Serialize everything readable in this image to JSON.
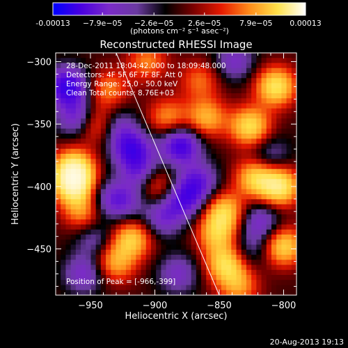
{
  "chart_data": {
    "type": "heatmap",
    "title": "Reconstructed RHESSI Image",
    "xlabel": "Heliocentric X (arcsec)",
    "ylabel": "Heliocentric Y (arcsec)",
    "xlim": [
      -977,
      -790
    ],
    "ylim": [
      -487,
      -293
    ],
    "x_ticks": [
      -950,
      -900,
      -850,
      -800
    ],
    "x_tick_labels": [
      "−950",
      "−900",
      "−850",
      "−800"
    ],
    "y_ticks": [
      -300,
      -350,
      -400,
      -450
    ],
    "y_tick_labels": [
      "−300",
      "−350",
      "−400",
      "−450"
    ],
    "colorbar": {
      "min": -0.00013,
      "max": 0.00013,
      "ticks": [
        -0.00013,
        -7.9e-05,
        -2.6e-05,
        2.6e-05,
        7.9e-05,
        0.00013
      ],
      "tick_labels": [
        "-0.00013",
        "−7.9e−05",
        "−2.6e−05",
        "2.6e−05",
        "7.9e−05",
        "0.00013"
      ],
      "units_label": "(photons cm⁻² s⁻¹ asec⁻²)",
      "colormap": [
        "#0000ff",
        "#4a00e0",
        "#7b2bc8",
        "#6a3aa0",
        "#000000",
        "#7a0000",
        "#e61a00",
        "#ff8c1a",
        "#ffe14a",
        "#ffffff"
      ]
    },
    "annotations": [
      "28-Dec-2011 18:04:42.000 to 18:09:48.000",
      "Detectors: 4F 5F 6F 7F 8F, Att 0",
      "Energy Range: 25.0 - 50.0 keV",
      "Clean     Total counts: 8.76E+03",
      "Position of Peak = [-966,-399]"
    ],
    "peak": {
      "x": -966,
      "y": -399
    },
    "limb_line": [
      [
        -930,
        -293
      ],
      [
        -850,
        -487
      ]
    ],
    "features": [
      {
        "x": -963,
        "y": -398,
        "v": 1.0
      },
      {
        "x": -963,
        "y": -385,
        "v": 0.8
      },
      {
        "x": -956,
        "y": -420,
        "v": 0.5
      },
      {
        "x": -945,
        "y": -350,
        "v": 0.6
      },
      {
        "x": -936,
        "y": -322,
        "v": 0.45
      },
      {
        "x": -942,
        "y": -450,
        "v": 0.35
      },
      {
        "x": -918,
        "y": -442,
        "v": 0.7
      },
      {
        "x": -930,
        "y": -462,
        "v": 0.5
      },
      {
        "x": -906,
        "y": -300,
        "v": 0.45
      },
      {
        "x": -890,
        "y": -345,
        "v": 0.5
      },
      {
        "x": -900,
        "y": -398,
        "v": 0.55
      },
      {
        "x": -860,
        "y": -345,
        "v": 0.6
      },
      {
        "x": -865,
        "y": -315,
        "v": 0.4
      },
      {
        "x": -846,
        "y": -420,
        "v": 0.7
      },
      {
        "x": -852,
        "y": -438,
        "v": 0.6
      },
      {
        "x": -845,
        "y": -462,
        "v": 0.75
      },
      {
        "x": -835,
        "y": -480,
        "v": 0.5
      },
      {
        "x": -826,
        "y": -352,
        "v": 0.8
      },
      {
        "x": -822,
        "y": -393,
        "v": 0.7
      },
      {
        "x": -803,
        "y": -400,
        "v": 0.9
      },
      {
        "x": -806,
        "y": -320,
        "v": 0.85
      },
      {
        "x": -800,
        "y": -448,
        "v": 0.75
      },
      {
        "x": -960,
        "y": -345,
        "v": -0.6
      },
      {
        "x": -968,
        "y": -320,
        "v": -0.9
      },
      {
        "x": -930,
        "y": -352,
        "v": -0.45
      },
      {
        "x": -918,
        "y": -370,
        "v": -0.75
      },
      {
        "x": -910,
        "y": -390,
        "v": -0.6
      },
      {
        "x": -880,
        "y": -367,
        "v": -0.85
      },
      {
        "x": -877,
        "y": -410,
        "v": -0.65
      },
      {
        "x": -894,
        "y": -425,
        "v": -0.5
      },
      {
        "x": -924,
        "y": -412,
        "v": -0.45
      },
      {
        "x": -945,
        "y": -445,
        "v": -0.6
      },
      {
        "x": -938,
        "y": -410,
        "v": -0.35
      },
      {
        "x": -866,
        "y": -396,
        "v": -0.55
      },
      {
        "x": -818,
        "y": -428,
        "v": -0.5
      },
      {
        "x": -838,
        "y": -300,
        "v": -0.45
      },
      {
        "x": -826,
        "y": -450,
        "v": -0.3
      },
      {
        "x": -955,
        "y": -470,
        "v": -0.5
      },
      {
        "x": -882,
        "y": -470,
        "v": -0.45
      },
      {
        "x": -810,
        "y": -375,
        "v": -0.35
      }
    ]
  },
  "footer": {
    "timestamp": "20-Aug-2013 19:13"
  }
}
